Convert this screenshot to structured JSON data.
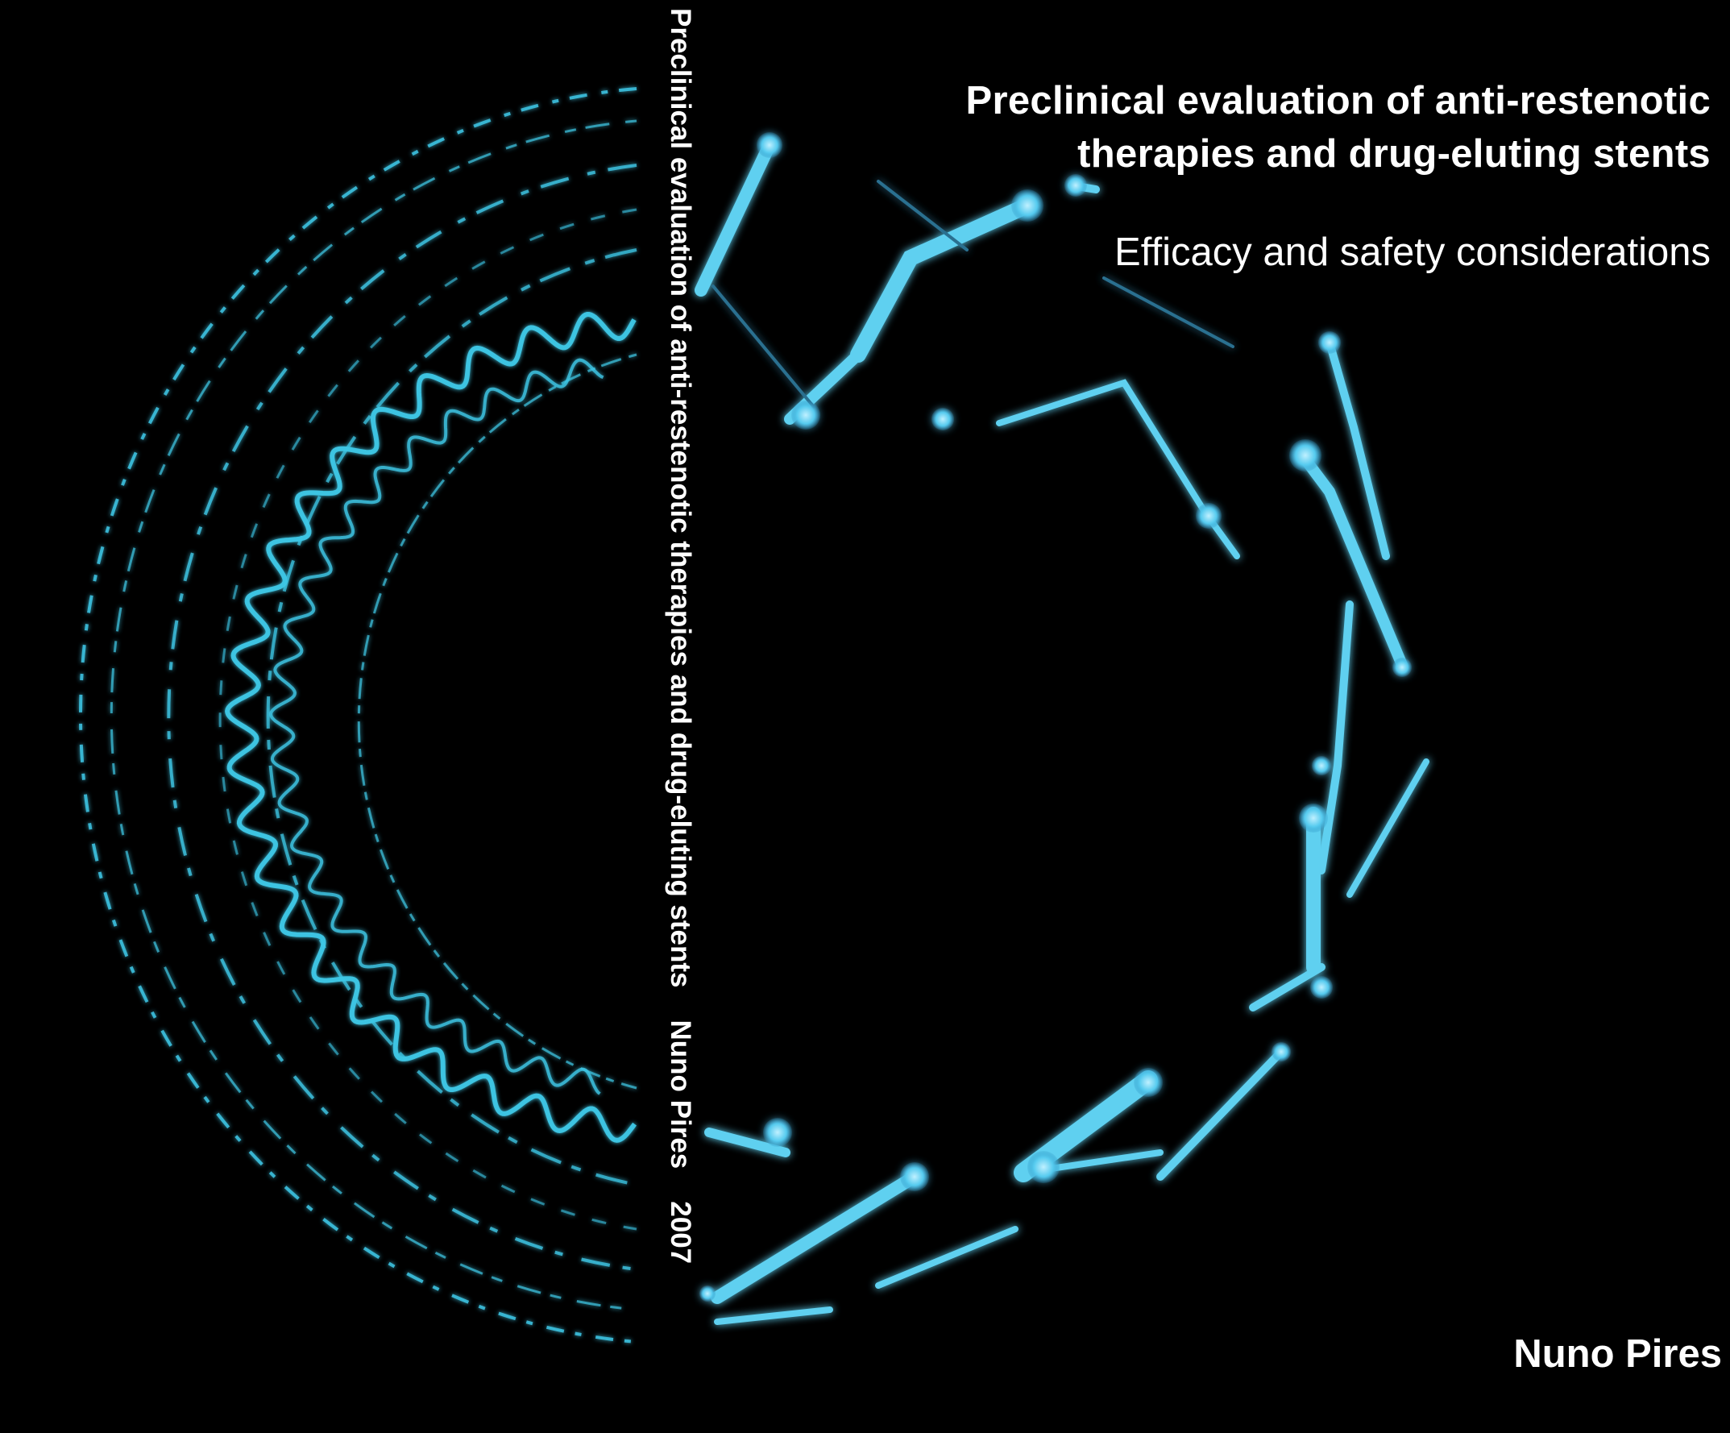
{
  "cover": {
    "title": "Preclinical evaluation of anti-restenotic therapies and drug-eluting stents",
    "subtitle": "Efficacy and safety considerations",
    "author": "Nuno Pires"
  },
  "spine": {
    "title": "Preclinical evaluation of anti-restenotic therapies and drug-eluting stents",
    "author": "Nuno Pires",
    "year": "2007"
  },
  "colors": {
    "background": "#000000",
    "text": "#ffffff",
    "vessel_glow": "#3ec7e6",
    "strut_glow": "#5fd0f0"
  }
}
